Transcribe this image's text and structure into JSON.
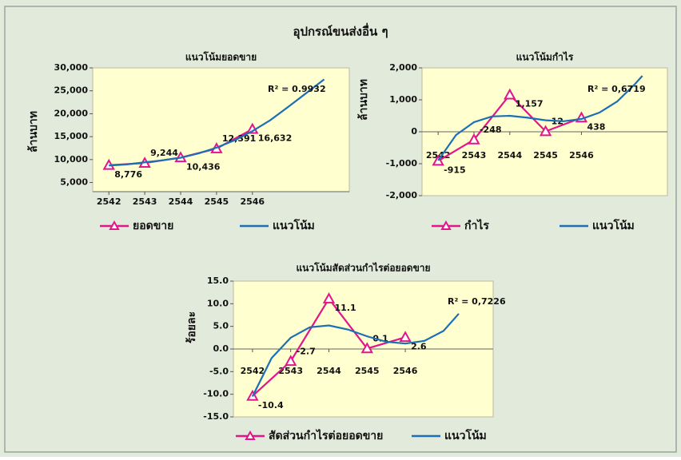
{
  "title": "อุปกรณ์ขนส่งอื่น ๆ",
  "chart_data": [
    {
      "type": "line",
      "title": "แนวโน้มยอดขาย",
      "ylabel": "ล้านบาท",
      "x": [
        2542,
        2543,
        2544,
        2545,
        2546
      ],
      "xticks": [
        2542,
        2543,
        2544,
        2545,
        2546
      ],
      "xlim": [
        2541.55,
        2548.7
      ],
      "ylim": [
        3000,
        30000
      ],
      "yticks": [
        {
          "value": 5000,
          "label": "5,000"
        },
        {
          "value": 10000,
          "label": "10,000"
        },
        {
          "value": 15000,
          "label": "15,000"
        },
        {
          "value": 20000,
          "label": "20,000"
        },
        {
          "value": 25000,
          "label": "25,000"
        },
        {
          "value": 30000,
          "label": "30,000"
        }
      ],
      "annotation": "R² = 0.9932",
      "grid": false,
      "series": [
        {
          "name": "ยอดขาย",
          "color": "#e0168a",
          "marker": "triangle",
          "values": [
            8776,
            9244,
            10436,
            12391,
            16632
          ],
          "value_labels": [
            "8,776",
            "9,244,",
            "10,436",
            "12,391",
            "16,632"
          ]
        },
        {
          "name": "แนวโน้ม",
          "color": "#1a6fb5",
          "x": [
            2542,
            2542.5,
            2543,
            2543.5,
            2544,
            2544.5,
            2545,
            2545.5,
            2546,
            2546.5,
            2547,
            2547.5,
            2548
          ],
          "values": [
            8700,
            8950,
            9400,
            9850,
            10400,
            11350,
            12600,
            14200,
            16200,
            18600,
            21500,
            24500,
            27500
          ]
        }
      ]
    },
    {
      "type": "line",
      "title": "แนวโน้มกำไร",
      "ylabel": "ล้านบาท",
      "x": [
        2542,
        2543,
        2544,
        2545,
        2546
      ],
      "xticks": [
        2542,
        2543,
        2544,
        2545,
        2546
      ],
      "xlim": [
        2541.55,
        2548.4
      ],
      "ylim": [
        -2000,
        2000
      ],
      "yticks": [
        {
          "value": -2000,
          "label": "-2,000"
        },
        {
          "value": -1000,
          "label": "-1,000"
        },
        0,
        {
          "value": 1000,
          "label": "1,000"
        },
        {
          "value": 2000,
          "label": "2,000"
        }
      ],
      "annotation": "R² = 0,6719",
      "grid": false,
      "series": [
        {
          "name": "กำไร",
          "color": "#e0168a",
          "marker": "triangle",
          "values": [
            -915,
            -248,
            1157,
            12,
            438
          ],
          "value_labels": [
            "-915",
            "-248",
            "1,157",
            "12",
            "438"
          ]
        },
        {
          "name": "แนวโน้ม",
          "color": "#1a6fb5",
          "x": [
            2542,
            2542.5,
            2543,
            2543.5,
            2544,
            2544.5,
            2545,
            2545.5,
            2546,
            2546.5,
            2547,
            2547.5,
            2547.7
          ],
          "values": [
            -900,
            -100,
            300,
            480,
            500,
            440,
            360,
            330,
            400,
            600,
            950,
            1500,
            1750
          ]
        }
      ]
    },
    {
      "type": "line",
      "title": "แนวโน้มสัดส่วนกำไรต่อยอดขาย",
      "ylabel": "ร้อยละ",
      "x": [
        2542,
        2543,
        2544,
        2545,
        2546
      ],
      "xticks": [
        2542,
        2543,
        2544,
        2545,
        2546
      ],
      "xlim": [
        2541.5,
        2548.3
      ],
      "ylim": [
        -15,
        15
      ],
      "yticks": [
        {
          "value": -15,
          "label": "-15.0"
        },
        {
          "value": -10,
          "label": "-10.0"
        },
        {
          "value": -5,
          "label": "-5.0"
        },
        {
          "value": 0,
          "label": "0.0"
        },
        {
          "value": 5,
          "label": "5.0"
        },
        {
          "value": 10,
          "label": "10.0"
        },
        {
          "value": 15,
          "label": "15.0"
        }
      ],
      "annotation": "R² = 0,7226",
      "grid": false,
      "series": [
        {
          "name": "สัดส่วนกำไรต่อยอดขาย",
          "color": "#e0168a",
          "marker": "triangle",
          "values": [
            -10.4,
            -2.7,
            11.1,
            0.1,
            2.6
          ]
        },
        {
          "name": "แนวโน้ม",
          "color": "#1a6fb5",
          "x": [
            2542,
            2542.5,
            2543,
            2543.5,
            2544,
            2544.5,
            2545,
            2545.5,
            2546,
            2546.5,
            2547,
            2547.4
          ],
          "values": [
            -10.5,
            -2,
            2.5,
            4.8,
            5.2,
            4.3,
            2.8,
            1.6,
            1.2,
            1.8,
            4,
            7.8
          ]
        }
      ]
    }
  ]
}
